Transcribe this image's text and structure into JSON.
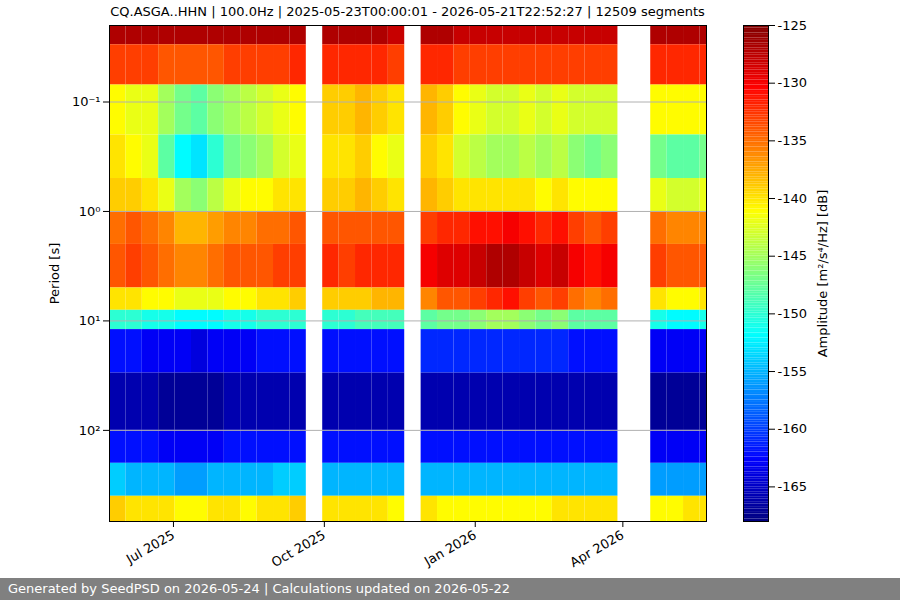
{
  "chart_data": {
    "type": "heatmap",
    "title": "CQ.ASGA..HHN | 100.0Hz | 2025-05-23T00:00:01 - 2026-05-21T22:52:27 | 12509 segments",
    "footer": "Generated by SeedPSD on 2026-05-24 | Calculations updated on 2026-05-22",
    "ylabel": "Period [s]",
    "log": "y",
    "grid": "y",
    "xlim": [
      "2025-05-23",
      "2026-05-22"
    ],
    "xticks": [
      {
        "value": "2025-07-01",
        "label": "Jul 2025"
      },
      {
        "value": "2025-10-01",
        "label": "Oct 2025"
      },
      {
        "value": "2026-01-01",
        "label": "Jan 2026"
      },
      {
        "value": "2026-04-01",
        "label": "Apr 2026"
      }
    ],
    "ylim": [
      0.02,
      680
    ],
    "yticks": [
      {
        "value": 0.1,
        "label": "10⁻¹"
      },
      {
        "value": 1,
        "label": "10⁰"
      },
      {
        "value": 10,
        "label": "10¹"
      },
      {
        "value": 100,
        "label": "10²"
      }
    ],
    "period_edges": [
      0.02,
      0.03,
      0.07,
      0.2,
      0.5,
      1,
      2,
      5,
      8,
      12,
      30,
      100,
      200,
      400,
      680
    ],
    "x": [
      "2025-05-23",
      "2025-06-02",
      "2025-06-12",
      "2025-06-22",
      "2025-07-02",
      "2025-07-12",
      "2025-07-22",
      "2025-08-01",
      "2025-08-11",
      "2025-08-21",
      "2025-08-31",
      "2025-09-10",
      "2025-09-20",
      "2025-09-30",
      "2025-10-10",
      "2025-10-20",
      "2025-10-30",
      "2025-11-09",
      "2025-11-19",
      "2025-11-29",
      "2025-12-09",
      "2025-12-19",
      "2025-12-29",
      "2026-01-08",
      "2026-01-18",
      "2026-01-28",
      "2026-02-07",
      "2026-02-17",
      "2026-02-27",
      "2026-03-09",
      "2026-03-19",
      "2026-03-29",
      "2026-04-08",
      "2026-04-18",
      "2026-04-28",
      "2026-05-08",
      "2026-05-18"
    ],
    "cells": [
      [
        -127,
        -133,
        -141,
        -140,
        -139,
        -135,
        -134,
        -140,
        -150,
        -162,
        -166,
        -162,
        -154,
        -139
      ],
      [
        -127,
        -133,
        -142,
        -141,
        -139,
        -134,
        -133,
        -140,
        -150,
        -162,
        -166,
        -162,
        -155,
        -140
      ],
      [
        -127,
        -133,
        -142,
        -142,
        -140,
        -135,
        -134,
        -141,
        -151,
        -163,
        -166,
        -162,
        -155,
        -140
      ],
      [
        -127,
        -134,
        -145,
        -148,
        -142,
        -136,
        -135,
        -141,
        -151,
        -163,
        -167,
        -163,
        -155,
        -140
      ],
      [
        -127,
        -134,
        -147,
        -152,
        -145,
        -138,
        -136,
        -142,
        -152,
        -163,
        -167,
        -163,
        -156,
        -141
      ],
      [
        -127,
        -134,
        -148,
        -153,
        -146,
        -138,
        -136,
        -142,
        -152,
        -164,
        -167,
        -163,
        -156,
        -141
      ],
      [
        -127,
        -134,
        -146,
        -150,
        -144,
        -137,
        -135,
        -142,
        -152,
        -163,
        -167,
        -163,
        -155,
        -140
      ],
      [
        -127,
        -133,
        -145,
        -147,
        -142,
        -136,
        -134,
        -141,
        -151,
        -163,
        -166,
        -162,
        -155,
        -140
      ],
      [
        -127,
        -133,
        -144,
        -146,
        -141,
        -136,
        -134,
        -141,
        -151,
        -163,
        -166,
        -162,
        -155,
        -141
      ],
      [
        -127,
        -133,
        -143,
        -145,
        -141,
        -135,
        -134,
        -140,
        -150,
        -162,
        -166,
        -162,
        -155,
        -140
      ],
      [
        -127,
        -133,
        -142,
        -143,
        -140,
        -135,
        -133,
        -140,
        -150,
        -162,
        -166,
        -162,
        -154,
        -140
      ],
      [
        -127,
        -132,
        -141,
        -142,
        -140,
        -134,
        -133,
        -139,
        -150,
        -162,
        -166,
        -162,
        -154,
        -139
      ],
      null,
      [
        -127,
        -132,
        -139,
        -140,
        -139,
        -134,
        -132,
        -139,
        -150,
        -162,
        -166,
        -162,
        -155,
        -140
      ],
      [
        -127,
        -132,
        -139,
        -140,
        -139,
        -134,
        -133,
        -139,
        -150,
        -162,
        -166,
        -162,
        -155,
        -140
      ],
      [
        -127,
        -132,
        -138,
        -139,
        -138,
        -134,
        -132,
        -139,
        -149,
        -162,
        -166,
        -162,
        -155,
        -140
      ],
      [
        -127,
        -132,
        -139,
        -141,
        -139,
        -134,
        -132,
        -138,
        -149,
        -162,
        -166,
        -162,
        -155,
        -140
      ],
      [
        -128,
        -133,
        -140,
        -142,
        -140,
        -134,
        -132,
        -138,
        -149,
        -162,
        -166,
        -162,
        -155,
        -141
      ],
      null,
      [
        -127,
        -132,
        -138,
        -139,
        -138,
        -133,
        -130,
        -136,
        -148,
        -161,
        -166,
        -162,
        -155,
        -140
      ],
      [
        -127,
        -132,
        -139,
        -140,
        -139,
        -132,
        -129,
        -134,
        -147,
        -161,
        -166,
        -162,
        -155,
        -141
      ],
      [
        -128,
        -133,
        -141,
        -143,
        -140,
        -132,
        -129,
        -134,
        -147,
        -161,
        -166,
        -162,
        -155,
        -141
      ],
      [
        -128,
        -133,
        -142,
        -144,
        -140,
        -131,
        -128,
        -133,
        -146,
        -161,
        -166,
        -162,
        -155,
        -141
      ],
      [
        -128,
        -133,
        -143,
        -145,
        -140,
        -131,
        -127,
        -132,
        -145,
        -161,
        -166,
        -162,
        -155,
        -141
      ],
      [
        -128,
        -133,
        -143,
        -145,
        -140,
        -130,
        -127,
        -131,
        -145,
        -161,
        -166,
        -162,
        -155,
        -141
      ],
      [
        -128,
        -133,
        -142,
        -144,
        -140,
        -131,
        -128,
        -133,
        -146,
        -161,
        -166,
        -162,
        -155,
        -141
      ],
      [
        -128,
        -133,
        -143,
        -145,
        -141,
        -132,
        -129,
        -134,
        -147,
        -161,
        -166,
        -162,
        -155,
        -141
      ],
      [
        -128,
        -133,
        -142,
        -144,
        -140,
        -131,
        -128,
        -133,
        -146,
        -161,
        -166,
        -162,
        -155,
        -140
      ],
      [
        -128,
        -133,
        -143,
        -146,
        -141,
        -133,
        -130,
        -135,
        -148,
        -162,
        -166,
        -162,
        -155,
        -140
      ],
      [
        -128,
        -133,
        -143,
        -147,
        -141,
        -134,
        -131,
        -136,
        -148,
        -162,
        -166,
        -162,
        -155,
        -140
      ],
      [
        -128,
        -133,
        -143,
        -146,
        -141,
        -133,
        -130,
        -135,
        -148,
        -162,
        -166,
        -162,
        -155,
        -140
      ],
      null,
      null,
      [
        -127,
        -132,
        -141,
        -147,
        -142,
        -135,
        -133,
        -140,
        -151,
        -163,
        -167,
        -163,
        -156,
        -141
      ],
      [
        -127,
        -132,
        -141,
        -148,
        -143,
        -136,
        -134,
        -141,
        -152,
        -163,
        -167,
        -163,
        -156,
        -141
      ],
      [
        -127,
        -132,
        -141,
        -148,
        -143,
        -136,
        -134,
        -141,
        -152,
        -163,
        -167,
        -163,
        -156,
        -140
      ],
      [
        -127,
        -132,
        -141,
        -147,
        -142,
        -136,
        -134,
        -140,
        -151,
        -163,
        -167,
        -163,
        -156,
        -140
      ]
    ],
    "colorbar": {
      "label": "Amplitude [m²/s⁴/Hz] [dB]",
      "range": [
        -168,
        -125
      ],
      "ticks": [
        -165,
        -160,
        -155,
        -150,
        -145,
        -140,
        -135,
        -130,
        -125
      ]
    }
  }
}
